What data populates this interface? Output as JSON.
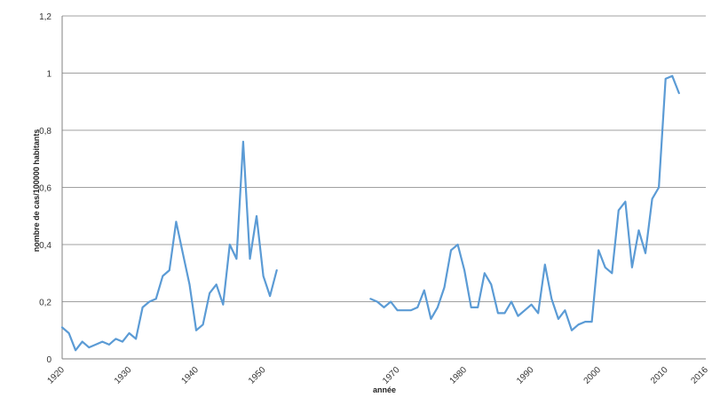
{
  "chart_data": {
    "type": "line",
    "title": "",
    "xlabel": "année",
    "ylabel": "nombre de cas/100000 habitants",
    "xlim": [
      1920,
      2016
    ],
    "ylim": [
      0,
      1.2
    ],
    "y_ticks": [
      0,
      0.2,
      0.4,
      0.6,
      0.8,
      1,
      1.2
    ],
    "y_tick_labels": [
      "0",
      "0,2",
      "0,4",
      "0,6",
      "0,8",
      "1",
      "1,2"
    ],
    "x_ticks": [
      1920,
      1930,
      1940,
      1950,
      1970,
      1980,
      1990,
      2000,
      2010,
      2016
    ],
    "x_tick_labels": [
      "1920",
      "1930",
      "1940",
      "1950",
      "1970",
      "1980",
      "1990",
      "2000",
      "2010",
      "2016"
    ],
    "grid": true,
    "legend": "none",
    "color": "#5b9bd5",
    "series": [
      {
        "segments": [
          [
            [
              1920,
              0.11
            ],
            [
              1921,
              0.09
            ],
            [
              1922,
              0.03
            ],
            [
              1923,
              0.06
            ],
            [
              1924,
              0.04
            ],
            [
              1925,
              0.05
            ],
            [
              1926,
              0.06
            ],
            [
              1927,
              0.05
            ],
            [
              1928,
              0.07
            ],
            [
              1929,
              0.06
            ],
            [
              1930,
              0.09
            ],
            [
              1931,
              0.07
            ],
            [
              1932,
              0.18
            ],
            [
              1933,
              0.2
            ],
            [
              1934,
              0.21
            ],
            [
              1935,
              0.29
            ],
            [
              1936,
              0.31
            ],
            [
              1937,
              0.48
            ],
            [
              1938,
              0.37
            ],
            [
              1939,
              0.26
            ],
            [
              1940,
              0.1
            ],
            [
              1941,
              0.12
            ],
            [
              1942,
              0.23
            ],
            [
              1943,
              0.26
            ],
            [
              1944,
              0.19
            ],
            [
              1945,
              0.4
            ],
            [
              1946,
              0.35
            ],
            [
              1947,
              0.76
            ],
            [
              1948,
              0.35
            ],
            [
              1949,
              0.5
            ],
            [
              1950,
              0.29
            ],
            [
              1951,
              0.22
            ],
            [
              1952,
              0.31
            ]
          ],
          [
            [
              1966,
              0.21
            ],
            [
              1967,
              0.2
            ],
            [
              1968,
              0.18
            ],
            [
              1969,
              0.2
            ],
            [
              1970,
              0.17
            ],
            [
              1971,
              0.17
            ],
            [
              1972,
              0.17
            ],
            [
              1973,
              0.18
            ],
            [
              1974,
              0.24
            ],
            [
              1975,
              0.14
            ],
            [
              1976,
              0.18
            ],
            [
              1977,
              0.25
            ],
            [
              1978,
              0.38
            ],
            [
              1979,
              0.4
            ],
            [
              1980,
              0.31
            ],
            [
              1981,
              0.18
            ],
            [
              1982,
              0.18
            ],
            [
              1983,
              0.3
            ],
            [
              1984,
              0.26
            ],
            [
              1985,
              0.16
            ],
            [
              1986,
              0.16
            ],
            [
              1987,
              0.2
            ],
            [
              1988,
              0.15
            ],
            [
              1989,
              0.17
            ],
            [
              1990,
              0.19
            ],
            [
              1991,
              0.16
            ],
            [
              1992,
              0.33
            ],
            [
              1993,
              0.21
            ],
            [
              1994,
              0.14
            ],
            [
              1995,
              0.17
            ],
            [
              1996,
              0.1
            ],
            [
              1997,
              0.12
            ],
            [
              1998,
              0.13
            ],
            [
              1999,
              0.13
            ],
            [
              2000,
              0.38
            ],
            [
              2001,
              0.32
            ],
            [
              2002,
              0.3
            ],
            [
              2003,
              0.52
            ],
            [
              2004,
              0.55
            ],
            [
              2005,
              0.32
            ],
            [
              2006,
              0.45
            ],
            [
              2007,
              0.37
            ],
            [
              2008,
              0.56
            ],
            [
              2009,
              0.6
            ],
            [
              2010,
              0.98
            ],
            [
              2011,
              0.99
            ],
            [
              2012,
              0.93
            ]
          ]
        ]
      }
    ]
  }
}
